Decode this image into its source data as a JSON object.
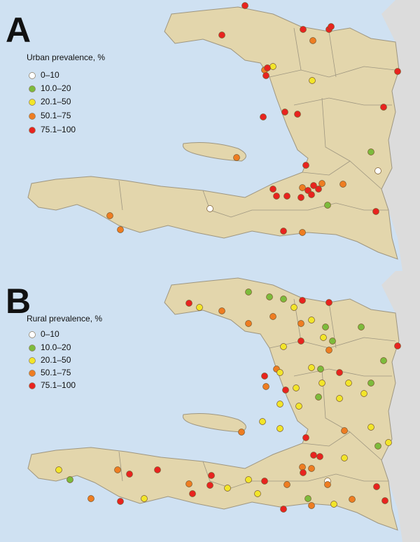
{
  "panels": [
    {
      "label": "A",
      "legend_title": "Urban prevalence, %",
      "legend": [
        {
          "label": "0–10",
          "color": "#ffffff"
        },
        {
          "label": "10.0–20",
          "color": "#7dbb3c"
        },
        {
          "label": "20.1–50",
          "color": "#f2e52a"
        },
        {
          "label": "50.1–75",
          "color": "#ee7d22"
        },
        {
          "label": "75.1–100",
          "color": "#e8231f"
        }
      ]
    },
    {
      "label": "B",
      "legend_title": "Rural prevalence, %",
      "legend": [
        {
          "label": "0–10",
          "color": "#ffffff"
        },
        {
          "label": "10.0–20",
          "color": "#7dbb3c"
        },
        {
          "label": "20.1–50",
          "color": "#f2e52a"
        },
        {
          "label": "50.1–75",
          "color": "#ee7d22"
        },
        {
          "label": "75.1–100",
          "color": "#e8231f"
        }
      ]
    }
  ]
}
